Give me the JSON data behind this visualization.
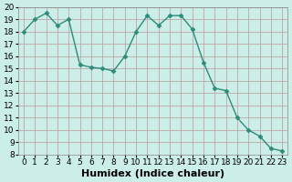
{
  "x": [
    0,
    1,
    2,
    3,
    4,
    5,
    6,
    7,
    8,
    9,
    10,
    11,
    12,
    13,
    14,
    15,
    16,
    17,
    18,
    19,
    20,
    21,
    22,
    23
  ],
  "y": [
    18,
    19,
    19.5,
    18.5,
    19,
    15.3,
    15.1,
    15.0,
    14.8,
    16.0,
    18.0,
    19.3,
    18.5,
    19.3,
    19.3,
    18.2,
    15.5,
    13.4,
    13.2,
    11.0,
    10.0,
    9.5,
    8.5,
    8.3
  ],
  "line_color": "#2e8b7a",
  "marker": "D",
  "marker_size": 2.5,
  "bg_color": "#cceee8",
  "xlabel": "Humidex (Indice chaleur)",
  "ylim": [
    8,
    20
  ],
  "xlim": [
    -0.5,
    23.5
  ],
  "yticks": [
    8,
    9,
    10,
    11,
    12,
    13,
    14,
    15,
    16,
    17,
    18,
    19,
    20
  ],
  "xticks": [
    0,
    1,
    2,
    3,
    4,
    5,
    6,
    7,
    8,
    9,
    10,
    11,
    12,
    13,
    14,
    15,
    16,
    17,
    18,
    19,
    20,
    21,
    22,
    23
  ],
  "xlabel_fontsize": 8,
  "tick_fontsize": 6.5
}
